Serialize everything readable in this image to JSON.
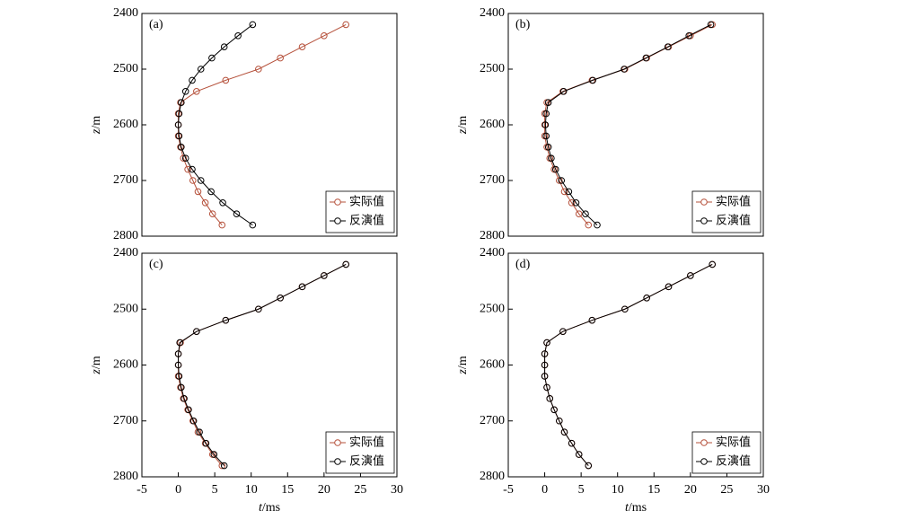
{
  "chart_data": [
    {
      "type": "line",
      "label": "(a)",
      "ylabel": "z/m",
      "y": [
        2420,
        2440,
        2460,
        2480,
        2500,
        2520,
        2540,
        2560,
        2580,
        2600,
        2620,
        2640,
        2660,
        2680,
        2700,
        2720,
        2740,
        2760,
        2780
      ],
      "xlim": [
        -5,
        30
      ],
      "ylim": [
        2800,
        2400
      ],
      "yticks": [
        2400,
        2500,
        2600,
        2700,
        2800
      ],
      "legend": "lower right",
      "series": [
        {
          "name": "实际值",
          "color": "#b5503a",
          "x": [
            23,
            20,
            17,
            14,
            11,
            6.5,
            2.5,
            0.3,
            0,
            0,
            0,
            0.3,
            0.7,
            1.3,
            2,
            2.7,
            3.7,
            4.7,
            6
          ]
        },
        {
          "name": "反演值",
          "color": "#000000",
          "x": [
            10.2,
            8.2,
            6.3,
            4.6,
            3.1,
            1.9,
            1,
            0.4,
            0.1,
            0,
            0.1,
            0.4,
            1,
            1.9,
            3.1,
            4.5,
            6.1,
            8,
            10.2
          ]
        }
      ]
    },
    {
      "type": "line",
      "label": "(b)",
      "ylabel": "z/m",
      "y": [
        2420,
        2440,
        2460,
        2480,
        2500,
        2520,
        2540,
        2560,
        2580,
        2600,
        2620,
        2640,
        2660,
        2680,
        2700,
        2720,
        2740,
        2760,
        2780
      ],
      "xlim": [
        -5,
        30
      ],
      "ylim": [
        2800,
        2400
      ],
      "yticks": [
        2400,
        2500,
        2600,
        2700,
        2800
      ],
      "legend": "lower right",
      "series": [
        {
          "name": "实际值",
          "color": "#b5503a",
          "x": [
            23,
            20,
            17,
            14,
            11,
            6.5,
            2.5,
            0.3,
            0,
            0,
            0,
            0.3,
            0.7,
            1.3,
            2,
            2.7,
            3.7,
            4.7,
            6
          ]
        },
        {
          "name": "反演值",
          "color": "#000000",
          "x": [
            22.8,
            19.8,
            16.9,
            13.9,
            10.9,
            6.6,
            2.6,
            0.5,
            0.2,
            0.1,
            0.2,
            0.5,
            0.9,
            1.5,
            2.3,
            3.3,
            4.3,
            5.6,
            7.2
          ]
        }
      ]
    },
    {
      "type": "line",
      "label": "(c)",
      "ylabel": "z/m",
      "xlabel": "t/ms",
      "y": [
        2420,
        2440,
        2460,
        2480,
        2500,
        2520,
        2540,
        2560,
        2580,
        2600,
        2620,
        2640,
        2660,
        2680,
        2700,
        2720,
        2740,
        2760,
        2780
      ],
      "xlim": [
        -5,
        30
      ],
      "xticks": [
        -5,
        0,
        5,
        10,
        15,
        20,
        25,
        30
      ],
      "ylim": [
        2800,
        2400
      ],
      "yticks": [
        2400,
        2500,
        2600,
        2700,
        2800
      ],
      "legend": "lower right",
      "series": [
        {
          "name": "实际值",
          "color": "#b5503a",
          "x": [
            23,
            20,
            17,
            14,
            11,
            6.5,
            2.5,
            0.3,
            0,
            0,
            0,
            0.3,
            0.7,
            1.3,
            2,
            2.7,
            3.7,
            4.7,
            6
          ]
        },
        {
          "name": "反演值",
          "color": "#000000",
          "x": [
            23,
            20,
            17,
            14,
            11,
            6.5,
            2.5,
            0.2,
            0,
            0,
            0.1,
            0.4,
            0.8,
            1.4,
            2.1,
            2.9,
            3.8,
            4.9,
            6.3
          ]
        }
      ]
    },
    {
      "type": "line",
      "label": "(d)",
      "ylabel": "z/m",
      "xlabel": "t/ms",
      "y": [
        2420,
        2440,
        2460,
        2480,
        2500,
        2520,
        2540,
        2560,
        2580,
        2600,
        2620,
        2640,
        2660,
        2680,
        2700,
        2720,
        2740,
        2760,
        2780
      ],
      "xlim": [
        -5,
        30
      ],
      "xticks": [
        -5,
        0,
        5,
        10,
        15,
        20,
        25,
        30
      ],
      "ylim": [
        2800,
        2400
      ],
      "yticks": [
        2400,
        2500,
        2600,
        2700,
        2800
      ],
      "legend": "lower right",
      "series": [
        {
          "name": "实际值",
          "color": "#b5503a",
          "x": [
            23,
            20,
            17,
            14,
            11,
            6.5,
            2.5,
            0.3,
            0,
            0,
            0,
            0.3,
            0.7,
            1.3,
            2,
            2.7,
            3.7,
            4.7,
            6
          ]
        },
        {
          "name": "反演值",
          "color": "#000000",
          "x": [
            23,
            20,
            17,
            14,
            11,
            6.5,
            2.5,
            0.3,
            0,
            0,
            0,
            0.3,
            0.7,
            1.3,
            2,
            2.7,
            3.7,
            4.7,
            6
          ]
        }
      ]
    }
  ]
}
